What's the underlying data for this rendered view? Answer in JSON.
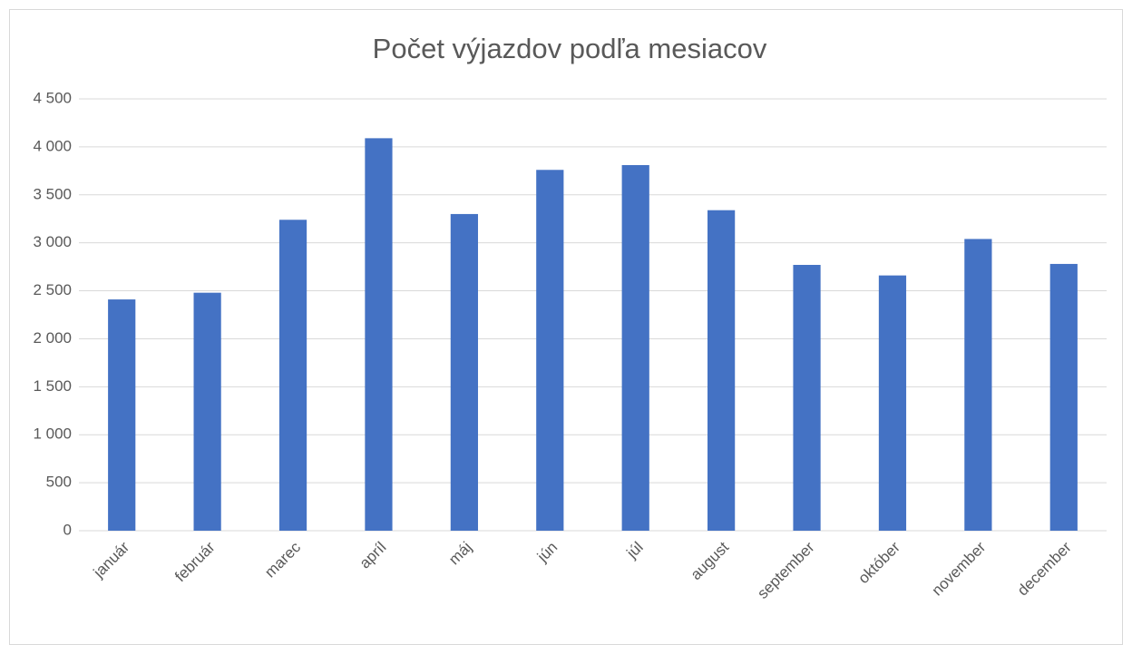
{
  "chart_data": {
    "type": "bar",
    "title": "Počet výjazdov podľa mesiacov",
    "categories": [
      "január",
      "február",
      "marec",
      "apríl",
      "máj",
      "jún",
      "júl",
      "august",
      "september",
      "október",
      "november",
      "december"
    ],
    "values": [
      2410,
      2480,
      3240,
      4090,
      3300,
      3760,
      3810,
      3340,
      2770,
      2660,
      3040,
      2780
    ],
    "color": "#4472c4",
    "ylim": [
      0,
      4500
    ],
    "yticks": [
      0,
      500,
      {
        "value": 1000,
        "label": "1 000"
      },
      {
        "value": 1500,
        "label": "1 500"
      },
      {
        "value": 2000,
        "label": "2 000"
      },
      {
        "value": 2500,
        "label": "2 500"
      },
      {
        "value": 3000,
        "label": "3 000"
      },
      {
        "value": 3500,
        "label": "3 500"
      },
      {
        "value": 4000,
        "label": "4 000"
      },
      {
        "value": 4500,
        "label": "4 500"
      }
    ],
    "grid": true
  }
}
